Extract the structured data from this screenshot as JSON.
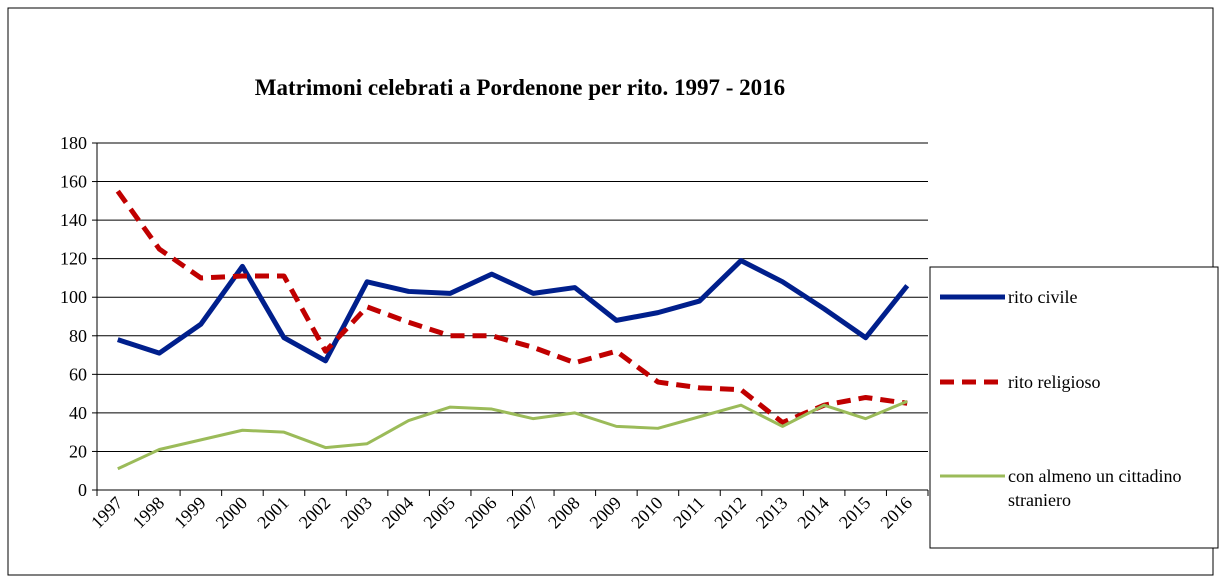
{
  "chart_data": {
    "type": "line",
    "title": "Matrimoni celebrati a Pordenone per rito. 1997 - 2016",
    "categories": [
      "1997",
      "1998",
      "1999",
      "2000",
      "2001",
      "2002",
      "2003",
      "2004",
      "2005",
      "2006",
      "2007",
      "2008",
      "2009",
      "2010",
      "2011",
      "2012",
      "2013",
      "2014",
      "2015",
      "2016"
    ],
    "series": [
      {
        "name": "rito civile",
        "color": "#001f8c",
        "style": "solid",
        "values": [
          78,
          71,
          86,
          116,
          79,
          67,
          108,
          103,
          102,
          112,
          102,
          105,
          88,
          92,
          98,
          119,
          108,
          94,
          79,
          106
        ]
      },
      {
        "name": "rito religioso",
        "color": "#c00000",
        "style": "dashed",
        "values": [
          155,
          125,
          110,
          111,
          111,
          72,
          95,
          87,
          80,
          80,
          74,
          66,
          72,
          56,
          53,
          52,
          35,
          44,
          48,
          45
        ]
      },
      {
        "name": "con almeno un cittadino straniero",
        "color": "#9bbb59",
        "style": "solid",
        "values": [
          11,
          21,
          26,
          31,
          30,
          22,
          24,
          36,
          43,
          42,
          37,
          40,
          33,
          32,
          38,
          44,
          33,
          44,
          37,
          46
        ]
      }
    ],
    "ylim": [
      0,
      180
    ],
    "yticks": [
      0,
      20,
      40,
      60,
      80,
      100,
      120,
      140,
      160,
      180
    ],
    "grid": true,
    "legend": "right"
  }
}
